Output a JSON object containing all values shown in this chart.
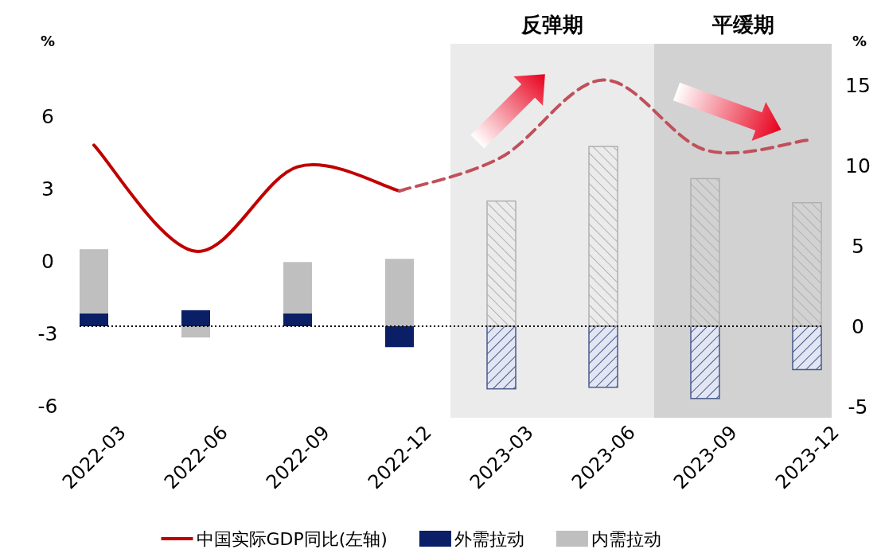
{
  "chart_data": {
    "type": "bar",
    "stacked": true,
    "legend": "bottom",
    "ylabel": "%",
    "y2label": "%",
    "categories": [
      "2022-03",
      "2022-06",
      "2022-09",
      "2022-12",
      "2023-03",
      "2023-06",
      "2023-09",
      "2023-12"
    ],
    "series": [
      {
        "name": "外需拉动",
        "color": "#0a1f66",
        "axis": "y2",
        "values": [
          0.8,
          1.0,
          0.8,
          -1.3,
          null,
          null,
          null,
          null
        ]
      },
      {
        "name": "内需拉动",
        "color": "#bfbfbf",
        "axis": "y2",
        "values": [
          4.0,
          -0.7,
          3.2,
          4.2,
          null,
          null,
          null,
          null
        ]
      },
      {
        "color": "#4a5a8c",
        "axis": "y2",
        "values": [
          null,
          null,
          null,
          null,
          -3.9,
          -3.8,
          -4.5,
          -2.7
        ]
      },
      {
        "color": "#b0b0b0",
        "axis": "y2",
        "values": [
          null,
          null,
          null,
          null,
          7.8,
          11.2,
          9.2,
          7.7
        ]
      },
      {
        "name": "中国实际GDP同比(左轴)",
        "type": "line",
        "color": "#c00000",
        "axis": "y",
        "line_style": "solid",
        "values": [
          4.8,
          0.4,
          3.9,
          2.9,
          null,
          null,
          null,
          null
        ]
      },
      {
        "type": "line",
        "color": "#c0505a",
        "axis": "y",
        "line_style": "dashed",
        "values": [
          null,
          null,
          null,
          2.9,
          4.3,
          7.5,
          4.6,
          5.0
        ]
      }
    ],
    "ylim": [
      -6.5,
      9
    ],
    "yticks": [
      -6,
      -3,
      0,
      3,
      6
    ],
    "y2lim": [
      -5.7,
      17.6
    ],
    "y2ticks": [
      -5,
      0,
      5,
      10,
      15
    ],
    "bands": [
      {
        "axis": "x",
        "from": "2023-03",
        "to": "2023-06",
        "label": "反弹期",
        "color": "#ebebeb"
      },
      {
        "axis": "x",
        "from": "2023-09",
        "to": "2023-12",
        "label": "平缓期",
        "color": "#d2d2d2"
      }
    ],
    "ref_lines": [
      {
        "axis": "y2",
        "value": 0,
        "color": "#000000",
        "line_style": "dotted"
      }
    ]
  }
}
